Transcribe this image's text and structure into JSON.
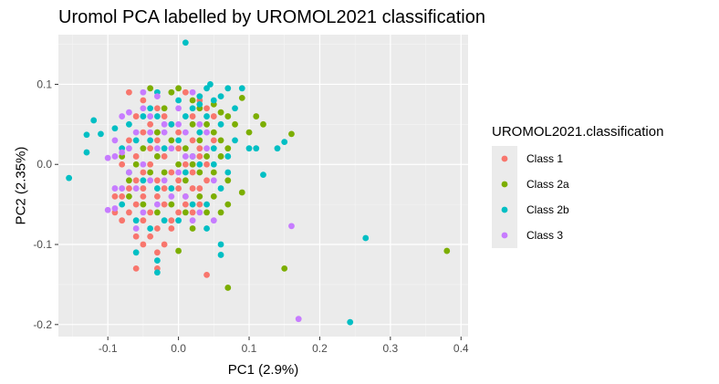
{
  "chart_data": {
    "type": "scatter",
    "title": "Uromol PCA labelled by UROMOL2021 classification",
    "xlabel": "PC1 (2.9%)",
    "ylabel": "PC2 (2.35%)",
    "xlim": [
      -0.17,
      0.41
    ],
    "ylim": [
      -0.215,
      0.162
    ],
    "x_ticks": [
      -0.1,
      0.0,
      0.1,
      0.2,
      0.3,
      0.4
    ],
    "x_tick_labels": [
      "-0.1",
      "0.0",
      "0.1",
      "0.2",
      "0.3",
      "0.4"
    ],
    "y_ticks": [
      -0.2,
      -0.1,
      0.0,
      0.1
    ],
    "y_tick_labels": [
      "-0.2",
      "-0.1",
      "0.0",
      "0.1"
    ],
    "grid": true,
    "background": "#ebebeb",
    "legend": {
      "title": "UROMOL2021.classification",
      "position": "right"
    },
    "series": [
      {
        "name": "Class 1",
        "color": "#f8766d",
        "points": [
          [
            -0.07,
            0.09
          ],
          [
            -0.05,
            0.08
          ],
          [
            -0.06,
            0.06
          ],
          [
            -0.04,
            0.05
          ],
          [
            -0.03,
            0.07
          ],
          [
            -0.02,
            0.06
          ],
          [
            -0.05,
            0.04
          ],
          [
            -0.07,
            0.03
          ],
          [
            -0.03,
            0.03
          ],
          [
            -0.01,
            0.05
          ],
          [
            0.0,
            0.04
          ],
          [
            0.02,
            0.06
          ],
          [
            0.03,
            0.08
          ],
          [
            0.01,
            0.09
          ],
          [
            0.04,
            0.07
          ],
          [
            0.05,
            0.06
          ],
          [
            0.02,
            0.03
          ],
          [
            0.03,
            0.02
          ],
          [
            0.0,
            0.02
          ],
          [
            -0.02,
            0.01
          ],
          [
            -0.04,
            0.0
          ],
          [
            -0.06,
            0.01
          ],
          [
            -0.08,
            0.0
          ],
          [
            -0.05,
            -0.01
          ],
          [
            -0.03,
            -0.02
          ],
          [
            -0.01,
            -0.01
          ],
          [
            0.01,
            0.0
          ],
          [
            0.02,
            -0.01
          ],
          [
            0.03,
            0.01
          ],
          [
            0.04,
            0.0
          ],
          [
            -0.02,
            -0.03
          ],
          [
            0.0,
            -0.03
          ],
          [
            0.02,
            -0.03
          ],
          [
            0.01,
            -0.04
          ],
          [
            -0.03,
            -0.04
          ],
          [
            -0.05,
            -0.04
          ],
          [
            -0.07,
            -0.03
          ],
          [
            -0.08,
            -0.04
          ],
          [
            -0.06,
            -0.05
          ],
          [
            -0.04,
            -0.06
          ],
          [
            -0.02,
            -0.05
          ],
          [
            0.0,
            -0.06
          ],
          [
            0.02,
            -0.06
          ],
          [
            0.03,
            -0.05
          ],
          [
            -0.01,
            -0.07
          ],
          [
            -0.03,
            -0.08
          ],
          [
            -0.05,
            -0.07
          ],
          [
            -0.06,
            -0.09
          ],
          [
            -0.04,
            -0.09
          ],
          [
            -0.02,
            -0.1
          ],
          [
            -0.07,
            -0.06
          ],
          [
            -0.09,
            -0.04
          ],
          [
            -0.08,
            -0.07
          ],
          [
            -0.05,
            -0.1
          ],
          [
            -0.03,
            -0.11
          ],
          [
            -0.06,
            -0.13
          ],
          [
            -0.03,
            -0.13
          ],
          [
            0.04,
            -0.138
          ],
          [
            -0.01,
            -0.08
          ],
          [
            0.01,
            -0.05
          ],
          [
            0.03,
            -0.03
          ],
          [
            0.04,
            -0.02
          ],
          [
            -0.04,
            0.02
          ],
          [
            -0.06,
            -0.02
          ],
          [
            0.05,
            0.03
          ],
          [
            0.02,
            0.0
          ],
          [
            -0.09,
            -0.06
          ],
          [
            -0.03,
            0.04
          ],
          [
            0.0,
            -0.02
          ],
          [
            -0.05,
            -0.03
          ]
        ]
      },
      {
        "name": "Class 2a",
        "color": "#7cae00",
        "points": [
          [
            -0.04,
            0.095
          ],
          [
            -0.01,
            0.09
          ],
          [
            0.0,
            0.095
          ],
          [
            0.02,
            0.08
          ],
          [
            0.03,
            0.07
          ],
          [
            0.05,
            0.075
          ],
          [
            0.06,
            0.065
          ],
          [
            0.09,
            0.083
          ],
          [
            0.07,
            0.06
          ],
          [
            0.08,
            0.05
          ],
          [
            0.04,
            0.05
          ],
          [
            0.02,
            0.05
          ],
          [
            -0.02,
            0.07
          ],
          [
            -0.03,
            0.04
          ],
          [
            -0.01,
            0.03
          ],
          [
            0.01,
            0.02
          ],
          [
            0.03,
            0.03
          ],
          [
            0.05,
            0.04
          ],
          [
            0.06,
            0.03
          ],
          [
            0.07,
            0.02
          ],
          [
            0.1,
            0.04
          ],
          [
            0.12,
            0.05
          ],
          [
            0.16,
            0.038
          ],
          [
            0.04,
            0.01
          ],
          [
            0.02,
            0.0
          ],
          [
            0.0,
            0.0
          ],
          [
            -0.02,
            -0.01
          ],
          [
            -0.04,
            -0.01
          ],
          [
            -0.06,
            0.0
          ],
          [
            -0.07,
            -0.02
          ],
          [
            -0.05,
            0.02
          ],
          [
            -0.03,
            0.01
          ],
          [
            0.01,
            -0.02
          ],
          [
            0.03,
            -0.01
          ],
          [
            0.05,
            -0.01
          ],
          [
            0.07,
            -0.02
          ],
          [
            0.09,
            -0.035
          ],
          [
            0.07,
            -0.05
          ],
          [
            0.05,
            -0.04
          ],
          [
            0.03,
            -0.04
          ],
          [
            0.01,
            -0.06
          ],
          [
            -0.01,
            -0.05
          ],
          [
            -0.03,
            -0.06
          ],
          [
            -0.05,
            -0.05
          ],
          [
            -0.07,
            -0.04
          ],
          [
            0.06,
            -0.06
          ],
          [
            0.02,
            -0.08
          ],
          [
            0.0,
            -0.108
          ],
          [
            0.15,
            -0.13
          ],
          [
            0.07,
            -0.154
          ],
          [
            0.38,
            -0.108
          ],
          [
            0.11,
            0.06
          ],
          [
            -0.08,
            0.01
          ],
          [
            0.04,
            -0.06
          ],
          [
            0.06,
            0.01
          ]
        ]
      },
      {
        "name": "Class 2b",
        "color": "#00bfc4",
        "points": [
          [
            0.01,
            0.152
          ],
          [
            0.04,
            0.095
          ],
          [
            0.045,
            0.1
          ],
          [
            0.03,
            0.085
          ],
          [
            0.05,
            0.08
          ],
          [
            0.07,
            0.095
          ],
          [
            0.09,
            0.095
          ],
          [
            0.06,
            0.085
          ],
          [
            -0.12,
            0.055
          ],
          [
            -0.13,
            0.037
          ],
          [
            -0.11,
            0.038
          ],
          [
            -0.13,
            0.015
          ],
          [
            -0.155,
            -0.017
          ],
          [
            -0.09,
            0.045
          ],
          [
            -0.07,
            0.05
          ],
          [
            -0.05,
            0.06
          ],
          [
            -0.04,
            0.07
          ],
          [
            -0.03,
            0.09
          ],
          [
            0.0,
            0.08
          ],
          [
            0.02,
            0.07
          ],
          [
            0.04,
            0.06
          ],
          [
            0.06,
            0.05
          ],
          [
            0.08,
            0.03
          ],
          [
            0.1,
            0.02
          ],
          [
            0.11,
            0.02
          ],
          [
            0.14,
            0.02
          ],
          [
            0.15,
            0.028
          ],
          [
            0.12,
            -0.013
          ],
          [
            0.07,
            0.01
          ],
          [
            0.05,
            0.02
          ],
          [
            0.03,
            0.04
          ],
          [
            0.01,
            0.06
          ],
          [
            -0.01,
            0.05
          ],
          [
            -0.03,
            0.06
          ],
          [
            -0.06,
            0.03
          ],
          [
            -0.08,
            0.02
          ],
          [
            -0.07,
            -0.01
          ],
          [
            -0.05,
            -0.02
          ],
          [
            -0.03,
            -0.03
          ],
          [
            -0.01,
            -0.03
          ],
          [
            0.01,
            -0.01
          ],
          [
            0.03,
            0.0
          ],
          [
            0.05,
            0.0
          ],
          [
            0.07,
            -0.01
          ],
          [
            0.06,
            -0.03
          ],
          [
            0.04,
            -0.05
          ],
          [
            0.02,
            -0.05
          ],
          [
            0.0,
            -0.07
          ],
          [
            -0.02,
            -0.07
          ],
          [
            -0.04,
            -0.08
          ],
          [
            -0.06,
            -0.07
          ],
          [
            -0.08,
            -0.05
          ],
          [
            -0.06,
            -0.11
          ],
          [
            -0.03,
            -0.12
          ],
          [
            -0.03,
            -0.135
          ],
          [
            0.04,
            -0.08
          ],
          [
            0.06,
            -0.1
          ],
          [
            0.06,
            -0.113
          ],
          [
            0.265,
            -0.092
          ],
          [
            0.243,
            -0.197
          ],
          [
            0.0,
            0.03
          ],
          [
            0.02,
            0.01
          ],
          [
            -0.02,
            0.02
          ],
          [
            0.08,
            0.07
          ],
          [
            -0.04,
            0.03
          ],
          [
            0.03,
            0.075
          ]
        ]
      },
      {
        "name": "Class 3",
        "color": "#c77cff",
        "points": [
          [
            -0.05,
            0.09
          ],
          [
            -0.03,
            0.085
          ],
          [
            -0.05,
            0.07
          ],
          [
            -0.07,
            0.065
          ],
          [
            -0.09,
            0.03
          ],
          [
            -0.08,
            0.015
          ],
          [
            -0.1,
            0.008
          ],
          [
            -0.09,
            0.01
          ],
          [
            -0.07,
            0.02
          ],
          [
            -0.06,
            0.04
          ],
          [
            -0.04,
            0.06
          ],
          [
            -0.02,
            0.05
          ],
          [
            0.0,
            0.07
          ],
          [
            0.02,
            0.09
          ],
          [
            0.03,
            0.05
          ],
          [
            0.01,
            0.04
          ],
          [
            -0.01,
            0.02
          ],
          [
            -0.03,
            0.02
          ],
          [
            -0.05,
            0.0
          ],
          [
            -0.07,
            -0.01
          ],
          [
            -0.09,
            -0.03
          ],
          [
            -0.09,
            -0.055
          ],
          [
            -0.1,
            -0.057
          ],
          [
            -0.08,
            -0.03
          ],
          [
            -0.06,
            -0.03
          ],
          [
            -0.04,
            -0.02
          ],
          [
            -0.02,
            -0.02
          ],
          [
            0.0,
            -0.01
          ],
          [
            0.02,
            0.01
          ],
          [
            0.04,
            0.02
          ],
          [
            0.05,
            -0.02
          ],
          [
            0.03,
            -0.06
          ],
          [
            0.01,
            -0.04
          ],
          [
            -0.01,
            -0.04
          ],
          [
            -0.03,
            -0.05
          ],
          [
            -0.05,
            -0.06
          ],
          [
            -0.06,
            -0.08
          ],
          [
            0.05,
            -0.07
          ],
          [
            0.02,
            -0.07
          ],
          [
            0.16,
            -0.077
          ],
          [
            0.17,
            -0.193
          ],
          [
            -0.02,
            0.04
          ],
          [
            0.0,
            0.05
          ],
          [
            0.01,
            0.01
          ],
          [
            -0.04,
            0.04
          ],
          [
            -0.08,
            0.06
          ],
          [
            0.04,
            0.04
          ]
        ]
      }
    ]
  }
}
